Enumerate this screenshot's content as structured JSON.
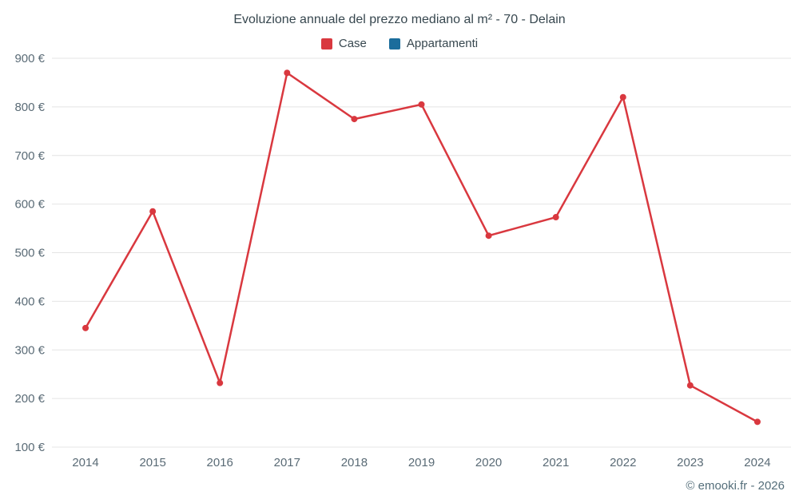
{
  "title": "Evoluzione annuale del prezzo mediano al m² - 70 - Delain",
  "footer": "© emooki.fr - 2026",
  "legend": [
    {
      "label": "Case",
      "color": "#d9383f"
    },
    {
      "label": "Appartamenti",
      "color": "#1b6d9c"
    }
  ],
  "chart_data": {
    "type": "line",
    "title": "Evoluzione annuale del prezzo mediano al m² - 70 - Delain",
    "x": [
      "2014",
      "2015",
      "2016",
      "2017",
      "2018",
      "2019",
      "2020",
      "2021",
      "2022",
      "2023",
      "2024"
    ],
    "series": [
      {
        "name": "Case",
        "color": "#d9383f",
        "values": [
          345,
          585,
          232,
          870,
          775,
          805,
          535,
          573,
          820,
          227,
          152
        ]
      },
      {
        "name": "Appartamenti",
        "color": "#1b6d9c",
        "values": []
      }
    ],
    "xlabel": "",
    "ylabel": "",
    "ylim": [
      100,
      900
    ],
    "ytick_step": 100,
    "ytick_suffix": " €",
    "grid": true,
    "legend_position": "top"
  }
}
